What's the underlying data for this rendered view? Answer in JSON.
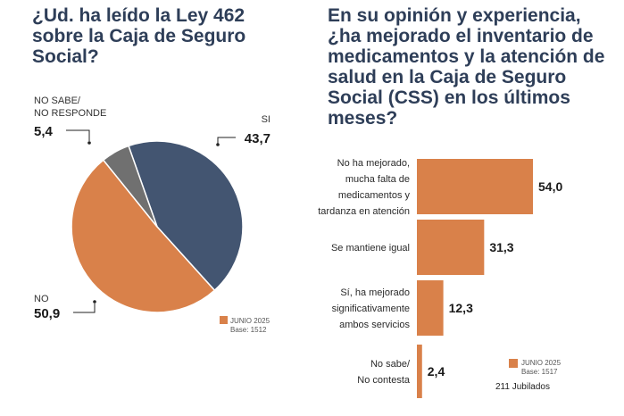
{
  "left_title": "¿Ud. ha leído la Ley 462 sobre la Caja de Seguro Social?",
  "right_title": "En su opinión y experiencia, ¿ha mejorado el inventario de medicamentos y la atención de salud en la Caja de Seguro Social (CSS) en los últimos meses?",
  "colors": {
    "navy": "#435571",
    "orange": "#d9814a",
    "gray": "#707070",
    "title": "#2e3e58"
  },
  "chart_data": [
    {
      "type": "pie",
      "title": "¿Ud. ha leído la Ley 462 sobre la Caja de Seguro Social?",
      "slices": [
        {
          "label_lines": [
            "SI"
          ],
          "value": 43.7,
          "value_text": "43,7",
          "color": "#435571"
        },
        {
          "label_lines": [
            "NO"
          ],
          "value": 50.9,
          "value_text": "50,9",
          "color": "#d9814a"
        },
        {
          "label_lines": [
            "NO SABE/",
            "NO RESPONDE"
          ],
          "value": 5.4,
          "value_text": "5,4",
          "color": "#707070"
        }
      ],
      "legend": {
        "label": "JUNIO 2025",
        "base": "Base: 1512",
        "color": "#d9814a"
      }
    },
    {
      "type": "bar",
      "orientation": "horizontal",
      "title": "En su opinión y experiencia, ¿ha mejorado el inventario de medicamentos y la atención de salud en la Caja de Seguro Social (CSS) en los últimos meses?",
      "categories": [
        [
          "No ha mejorado,",
          "mucha falta de",
          "medicamentos y",
          "tardanza en atención"
        ],
        [
          "Se mantiene igual"
        ],
        [
          "Sí, ha mejorado",
          "significativamente",
          "ambos servicios"
        ],
        [
          "No sabe/",
          "No contesta"
        ]
      ],
      "values": [
        54.0,
        31.3,
        12.3,
        2.4
      ],
      "value_labels": [
        "54,0",
        "31,3",
        "12,3",
        "2,4"
      ],
      "xlim": [
        0,
        54
      ],
      "color": "#d9814a",
      "legend": {
        "label": "JUNIO 2025",
        "base": "Base: 1517",
        "note": "211 Jubilados",
        "color": "#d9814a"
      }
    }
  ]
}
